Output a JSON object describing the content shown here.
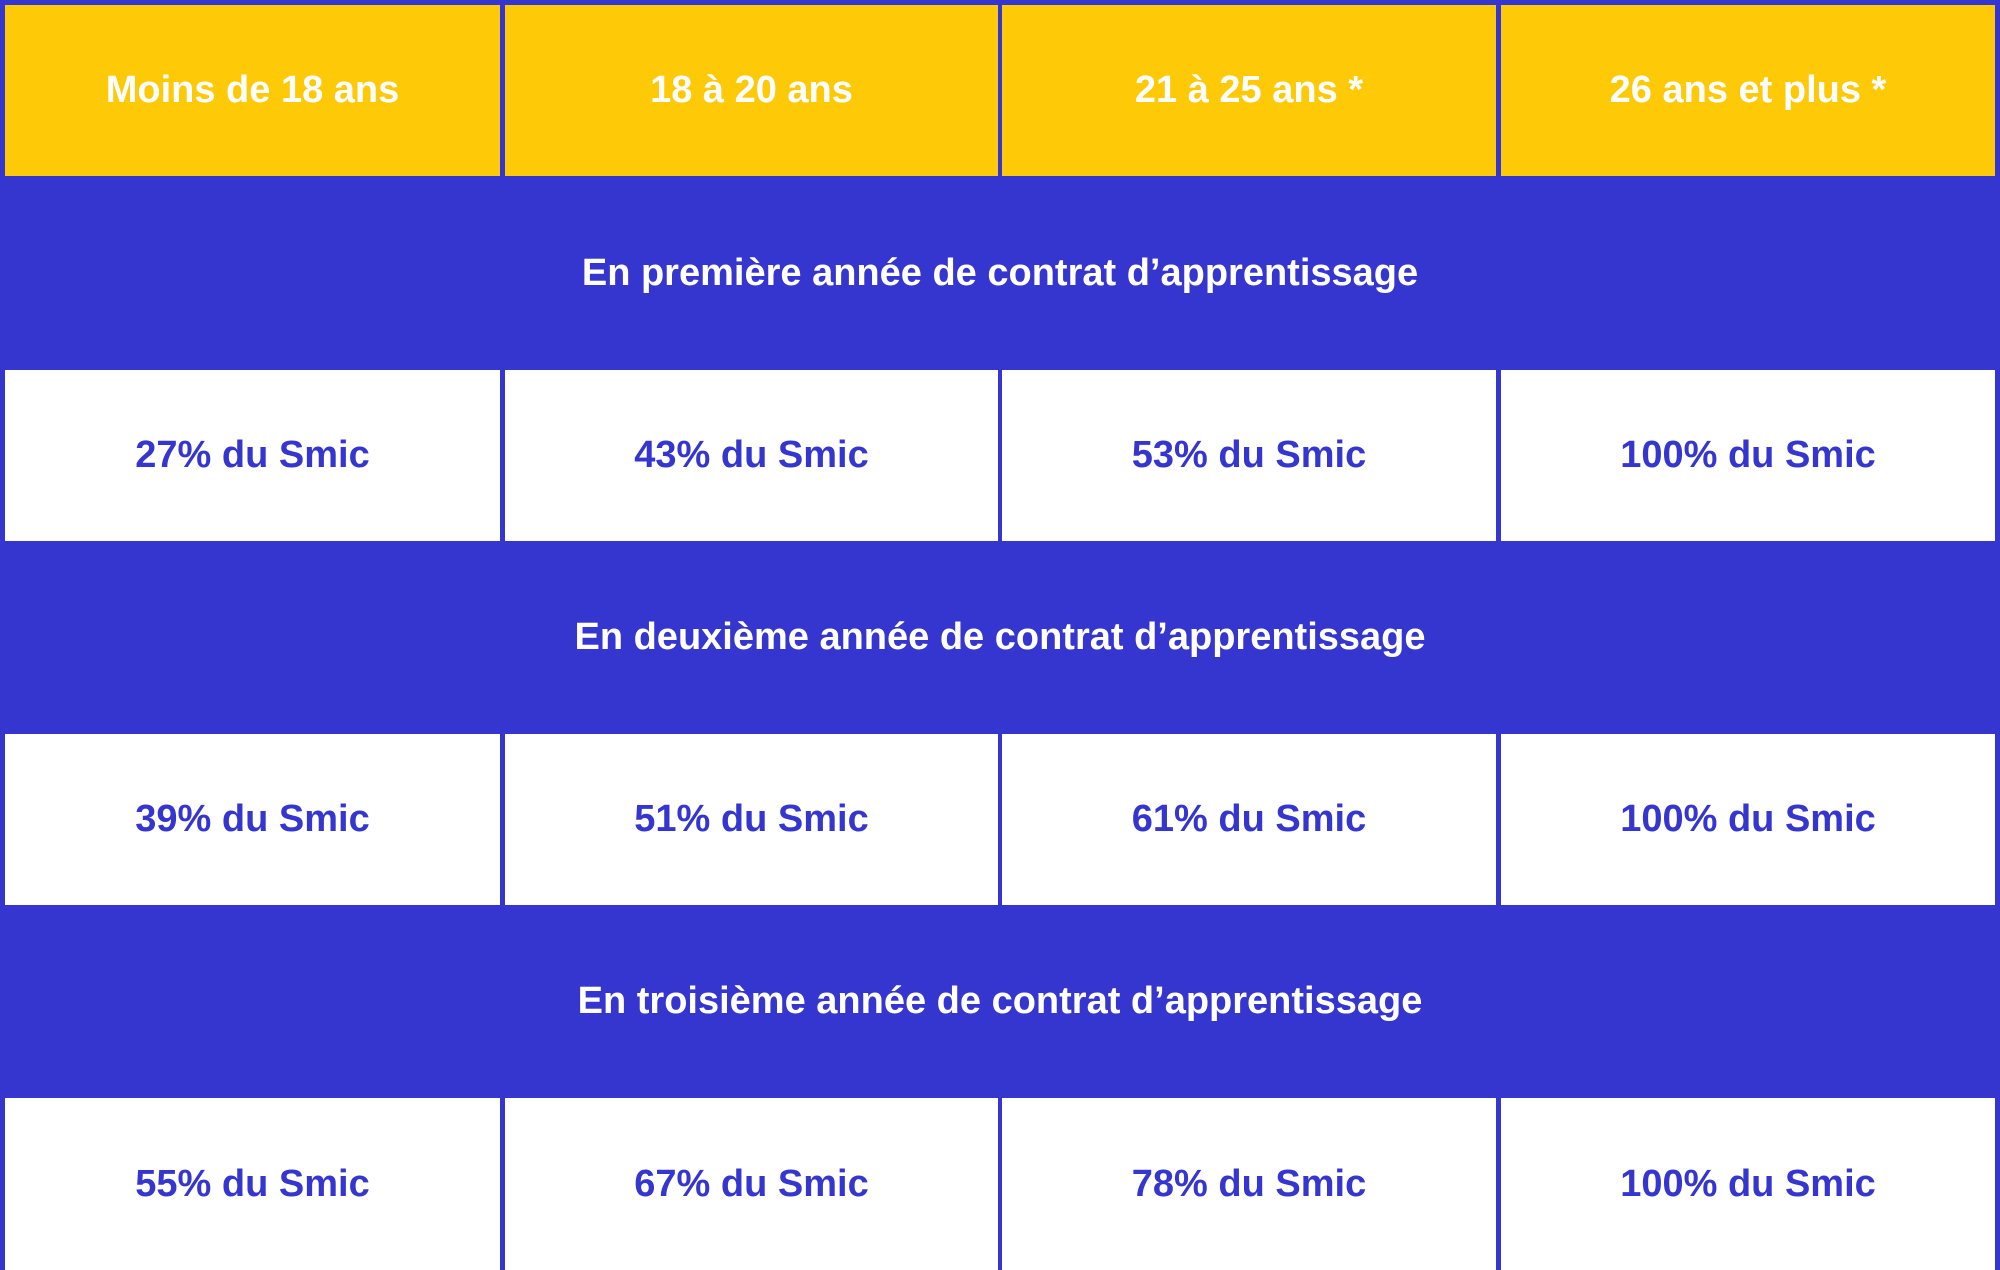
{
  "header": {
    "columns": [
      "Moins de 18 ans",
      "18 à 20 ans",
      "21 à 25 ans *",
      "26 ans et plus *"
    ]
  },
  "sections": [
    {
      "title": "En première année de contrat d’apprentissage",
      "values": [
        "27% du Smic",
        "43% du Smic",
        "53% du Smic",
        "100% du Smic"
      ]
    },
    {
      "title": "En deuxième année de contrat d’apprentissage",
      "values": [
        "39% du Smic",
        "51% du Smic",
        "61% du Smic",
        "100% du Smic"
      ]
    },
    {
      "title": "En troisième année de contrat d’apprentissage",
      "values": [
        "55% du Smic",
        "67% du Smic",
        "78% du Smic",
        "100% du Smic"
      ]
    }
  ],
  "colors": {
    "header_background": "#fec907",
    "band_background": "#3535cf",
    "value_text": "#3535cf",
    "header_text": "#ffffff"
  }
}
